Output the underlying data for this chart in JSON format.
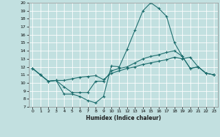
{
  "title": "",
  "xlabel": "Humidex (Indice chaleur)",
  "bg_color": "#c2e0e0",
  "grid_color": "#ffffff",
  "line_color": "#1a6b6b",
  "xlim": [
    -0.5,
    23.5
  ],
  "ylim": [
    7,
    20
  ],
  "yticks": [
    7,
    8,
    9,
    10,
    11,
    12,
    13,
    14,
    15,
    16,
    17,
    18,
    19,
    20
  ],
  "xticks": [
    0,
    1,
    2,
    3,
    4,
    5,
    6,
    7,
    8,
    9,
    10,
    11,
    12,
    13,
    14,
    15,
    16,
    17,
    18,
    19,
    20,
    21,
    22,
    23
  ],
  "line1_x": [
    0,
    1,
    2,
    3,
    4,
    5,
    6,
    7,
    8,
    9,
    10,
    11,
    12,
    13,
    14,
    15,
    16,
    17,
    18,
    19,
    20,
    21,
    22,
    23
  ],
  "line1_y": [
    11.8,
    11.0,
    10.2,
    10.3,
    8.6,
    8.6,
    8.3,
    7.8,
    7.5,
    8.3,
    12.1,
    12.0,
    14.2,
    16.6,
    19.0,
    20.0,
    19.3,
    18.3,
    15.0,
    13.3,
    11.8,
    12.0,
    11.2,
    11.0
  ],
  "line2_x": [
    0,
    1,
    2,
    3,
    4,
    5,
    6,
    7,
    8,
    9,
    10,
    11,
    12,
    13,
    14,
    15,
    16,
    17,
    18,
    19,
    20,
    21,
    22,
    23
  ],
  "line2_y": [
    11.8,
    11.0,
    10.2,
    10.3,
    9.5,
    8.8,
    8.8,
    8.8,
    10.2,
    10.2,
    11.5,
    11.8,
    12.0,
    12.5,
    13.0,
    13.3,
    13.5,
    13.8,
    14.0,
    13.3,
    11.8,
    12.0,
    11.2,
    11.0
  ],
  "line3_x": [
    0,
    1,
    2,
    3,
    4,
    5,
    6,
    7,
    8,
    9,
    10,
    11,
    12,
    13,
    14,
    15,
    16,
    17,
    18,
    19,
    20,
    21,
    22,
    23
  ],
  "line3_y": [
    11.8,
    11.0,
    10.2,
    10.3,
    10.3,
    10.5,
    10.7,
    10.8,
    10.9,
    10.4,
    11.2,
    11.5,
    11.8,
    12.0,
    12.3,
    12.5,
    12.7,
    12.9,
    13.2,
    13.0,
    13.2,
    12.0,
    11.2,
    11.0
  ]
}
